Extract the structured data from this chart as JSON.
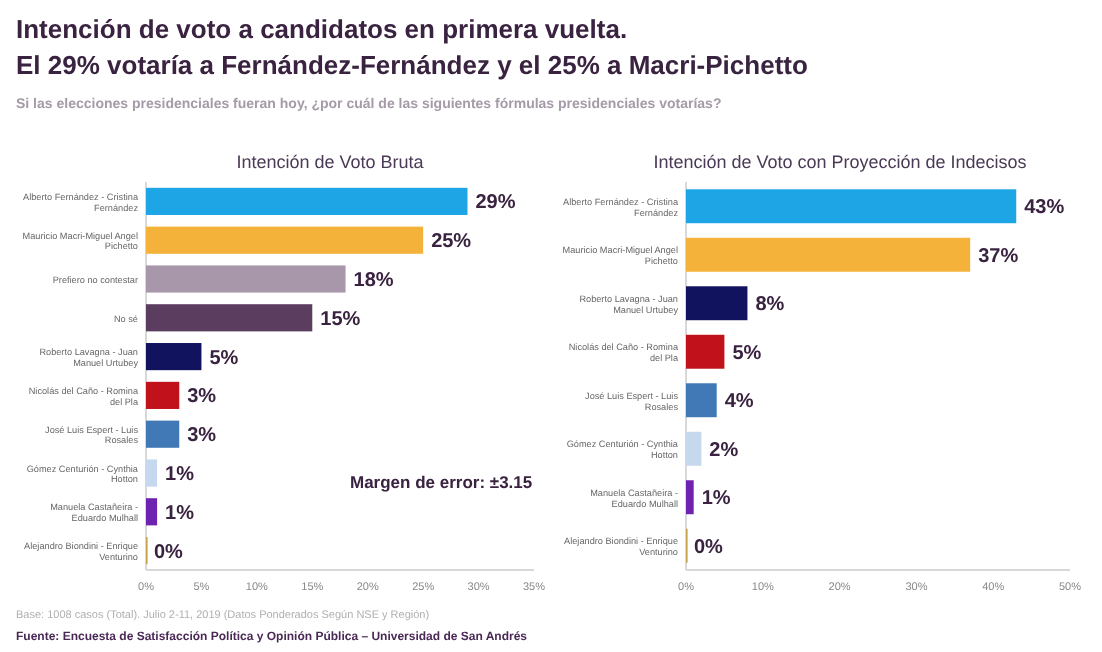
{
  "chart_data": [
    {
      "type": "bar",
      "orientation": "horizontal",
      "title": "Intención de Voto Bruta",
      "categories": [
        "Alberto Fernández - Cristina Fernández",
        "Mauricio Macri-Miguel Angel Pichetto",
        "Prefiero no contestar",
        "No sé",
        "Roberto Lavagna - Juan Manuel Urtubey",
        "Nicolás del Caño - Romina del Pla",
        "José Luis Espert - Luis Rosales",
        "Gómez Centurión - Cynthia Hotton",
        "Manuela Castañeira - Eduardo Mulhall",
        "Alejandro Biondini - Enrique Venturino"
      ],
      "values": [
        29,
        25,
        18,
        15,
        5,
        3,
        3,
        1,
        1,
        0
      ],
      "colors": [
        "#1ea5e6",
        "#f5b23a",
        "#a897aa",
        "#5b3d60",
        "#12135e",
        "#c1121c",
        "#4079b6",
        "#c5d8ee",
        "#6d22b0",
        "#c9a34c"
      ],
      "value_labels": [
        "29%",
        "25%",
        "18%",
        "15%",
        "5%",
        "3%",
        "3%",
        "1%",
        "1%",
        "0%"
      ],
      "xlim": [
        0,
        35
      ],
      "xticks": [
        {
          "value": 0,
          "label": "0%"
        },
        {
          "value": 5,
          "label": "5%"
        },
        {
          "value": 10,
          "label": "10%"
        },
        {
          "value": 15,
          "label": "15%"
        },
        {
          "value": 20,
          "label": "20%"
        },
        {
          "value": 25,
          "label": "25%"
        },
        {
          "value": 30,
          "label": "30%"
        },
        {
          "value": 35,
          "label": "35%"
        }
      ],
      "grid": false,
      "annotations": [
        "Intención de voto a candidatos en primera vuelta.",
        "El 29% votaría a Fernández-Fernández y el 25% a Macri-Pichetto",
        "Si las elecciones presidenciales fueran hoy, ¿por cuál de las siguientes fórmulas presidenciales votarías?",
        "Margen de error: ±3.15"
      ]
    },
    {
      "type": "bar",
      "orientation": "horizontal",
      "title": "Intención de Voto con Proyección de Indecisos",
      "categories": [
        "Alberto Fernández - Cristina Fernández",
        "Mauricio Macri-Miguel Angel Pichetto",
        "Roberto Lavagna - Juan Manuel Urtubey",
        "Nicolás del Caño - Romina del Pla",
        "José Luis Espert - Luis Rosales",
        "Gómez Centurión - Cynthia Hotton",
        "Manuela Castañeira - Eduardo Mulhall",
        "Alejandro Biondini - Enrique Venturino"
      ],
      "values": [
        43,
        37,
        8,
        5,
        4,
        2,
        1,
        0
      ],
      "colors": [
        "#1ea5e6",
        "#f5b23a",
        "#12135e",
        "#c1121c",
        "#4079b6",
        "#c5d8ee",
        "#6d22b0",
        "#c9a34c"
      ],
      "value_labels": [
        "43%",
        "37%",
        "8%",
        "5%",
        "4%",
        "2%",
        "1%",
        "0%"
      ],
      "xlim": [
        0,
        50
      ],
      "xticks": [
        {
          "value": 0,
          "label": "0%"
        },
        {
          "value": 10,
          "label": "10%"
        },
        {
          "value": 20,
          "label": "20%"
        },
        {
          "value": 30,
          "label": "30%"
        },
        {
          "value": 40,
          "label": "40%"
        },
        {
          "value": 50,
          "label": "50%"
        }
      ],
      "grid": false,
      "annotations": [
        "Base: 1008 casos (Total). Julio 2-11, 2019 (Datos Ponderados Según NSE y Región)",
        "Fuente: Encuesta de Satisfacción Política y Opinión Pública – Universidad de San Andrés"
      ]
    }
  ]
}
